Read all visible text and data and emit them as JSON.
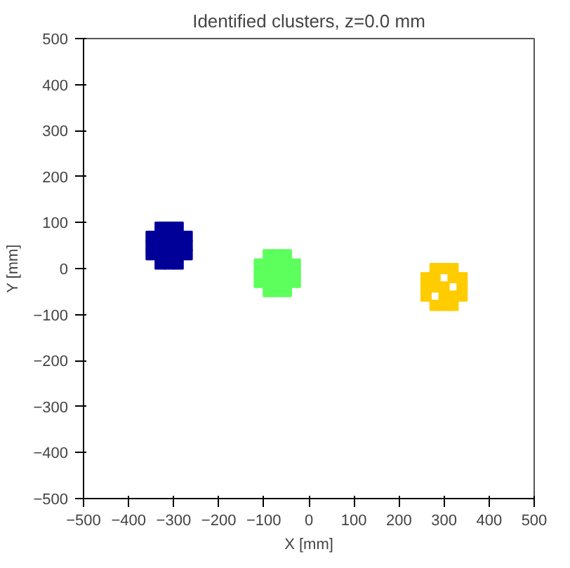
{
  "chart_data": {
    "type": "scatter",
    "title": "Identified clusters, z=0.0 mm",
    "xlabel": "X [mm]",
    "ylabel": "Y [mm]",
    "xlim": [
      -500,
      500
    ],
    "ylim": [
      -500,
      500
    ],
    "xticks": [
      -500,
      -400,
      -300,
      -200,
      -100,
      0,
      100,
      200,
      300,
      400,
      500
    ],
    "yticks": [
      -500,
      -400,
      -300,
      -200,
      -100,
      0,
      100,
      200,
      300,
      400,
      500
    ],
    "grid": false,
    "marker": "square",
    "series": [
      {
        "color": "#000099",
        "x": [
          -330,
          -310,
          -290,
          -350,
          -330,
          -310,
          -290,
          -270,
          -350,
          -330,
          -310,
          -290,
          -270,
          -350,
          -330,
          -310,
          -290,
          -270,
          -330,
          -310,
          -290
        ],
        "values": [
          90,
          90,
          90,
          70,
          70,
          70,
          70,
          70,
          50,
          50,
          50,
          50,
          50,
          30,
          30,
          30,
          30,
          30,
          10,
          10,
          10
        ]
      },
      {
        "color": "#5cff5c",
        "x": [
          -90,
          -70,
          -50,
          -110,
          -90,
          -70,
          -50,
          -30,
          -110,
          -90,
          -70,
          -50,
          -30,
          -110,
          -90,
          -70,
          -50,
          -30,
          -90,
          -70,
          -50
        ],
        "values": [
          30,
          30,
          30,
          10,
          10,
          10,
          10,
          10,
          -10,
          -10,
          -10,
          -10,
          -10,
          -30,
          -30,
          -30,
          -30,
          -30,
          -50,
          -50,
          -50
        ]
      },
      {
        "color": "#ffcc00",
        "x": [
          280,
          300,
          320,
          260,
          280,
          320,
          340,
          260,
          280,
          300,
          340,
          260,
          300,
          320,
          340,
          280,
          300,
          320
        ],
        "values": [
          0,
          0,
          0,
          -20,
          -20,
          -20,
          -20,
          -40,
          -40,
          -40,
          -40,
          -60,
          -60,
          -60,
          -60,
          -80,
          -80,
          -80
        ]
      }
    ]
  }
}
